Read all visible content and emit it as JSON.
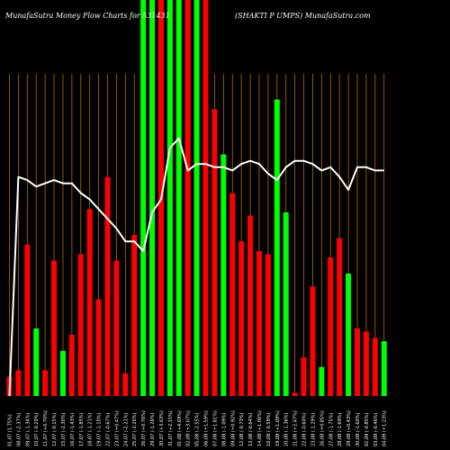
{
  "title": {
    "left": "MunafaSutra  Money Flow  Charts for 531431",
    "right": "(SHAKTI P                                   UMPS) MunafaSutra.com"
  },
  "colors": {
    "background": "#000000",
    "up": "#00ff00",
    "down": "#ff0000",
    "grid": "#b8660b",
    "line": "#ffffff",
    "text": "#ffffff"
  },
  "chart_data": {
    "type": "bar",
    "y_range": [
      0,
      100
    ],
    "categories": [
      "01,07 (1.75%)",
      "08,07 (-2.37%)",
      "09,07 (-1.34%)",
      "10,07 (-0.20%)",
      "11,07 (+0.70%)",
      "12,07 (-0.15%)",
      "15,07 (-2.30%)",
      "16,07 (-1.43%)",
      "17,07 (-1.85%)",
      "18,07 (-1.21%)",
      "19,07 (-1.10%)",
      "22,07 (-0.67%)",
      "23,07 (+0.47%)",
      "24,07 (-2.21%)",
      "25,07 (-2.26%)",
      "26,07 (+0.76%)",
      "29,07 (-1.26%)",
      "30,07 (+3.63%)",
      "31,07 (+2.15%)",
      "01,08 (+4.69%)",
      "02,08 (+3.07%)",
      "05,08 (-2.55%)",
      "06,08 (+1.59%)",
      "07,08 (+1.81%)",
      "08,08 (-1.09%)",
      "09,08 (+0.92%)",
      "12,08 (-0.73%)",
      "13,08 (-0.64%)",
      "14,08 (+1.06%)",
      "16,08 (-0.59%)",
      "19,08 (+1.09%)",
      "20,08 (-1.36%)",
      "21,08 (+2.47%)",
      "22,08 (-0.60%)",
      "23,08 (-1.29%)",
      "26,08 (+0.85%)",
      "27,08 (-1.75%)",
      "28,08 (-1.69%)",
      "29,08 (+0.43%)",
      "30,08 (-1.60%)",
      "02,09 (-0.85%)",
      "03,09 (-0.46%)",
      "04,09 (+1.23%)"
    ],
    "volume_values": [
      6,
      8,
      47,
      21,
      8,
      42,
      14,
      19,
      44,
      58,
      30,
      68,
      42,
      7,
      50,
      100,
      100,
      100,
      100,
      100,
      100,
      100,
      100,
      89,
      75,
      63,
      48,
      56,
      45,
      44,
      92,
      57,
      1,
      12,
      34,
      9,
      43,
      49,
      38,
      21,
      20,
      18,
      17
    ],
    "volume_direction": [
      "down",
      "down",
      "down",
      "up",
      "down",
      "down",
      "up",
      "down",
      "down",
      "down",
      "down",
      "down",
      "down",
      "down",
      "down",
      "up",
      "up",
      "down",
      "up",
      "up",
      "down",
      "up",
      "down",
      "down",
      "up",
      "down",
      "down",
      "down",
      "down",
      "down",
      "up",
      "up",
      "down",
      "down",
      "down",
      "up",
      "down",
      "down",
      "up",
      "down",
      "down",
      "down",
      "up"
    ],
    "money_flow_line": [
      0,
      68,
      67,
      65,
      66,
      67,
      66,
      66,
      63,
      61,
      58,
      55,
      52,
      48,
      48,
      45,
      57,
      61,
      77,
      80,
      70,
      72,
      72,
      71,
      71,
      70,
      72,
      73,
      72,
      69,
      67,
      71,
      73,
      73,
      72,
      70,
      71,
      68,
      64,
      71,
      71,
      70,
      70
    ],
    "grid": true,
    "legend": "none"
  }
}
